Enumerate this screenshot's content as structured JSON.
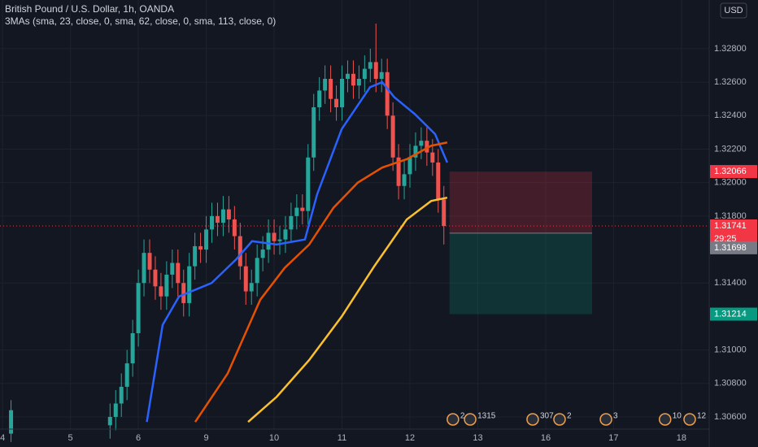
{
  "chart_data": {
    "type": "candlestick",
    "title": "British Pound / U.S. Dollar, 1h, OANDA",
    "indicator": "3MAs (sma, 23, close, 0, sma, 62, close, 0, sma, 113, close, 0)",
    "currency": "USD",
    "up_color": "#26a69a",
    "down_color": "#ef5350",
    "candles": {
      "x": [
        3,
        38,
        40,
        42,
        44,
        46,
        48,
        50,
        52,
        54,
        56,
        58,
        60,
        62,
        64,
        66,
        68,
        70,
        72,
        74,
        76,
        78,
        80,
        82,
        84,
        86,
        88,
        90,
        92,
        94,
        96,
        98,
        100,
        102,
        104,
        106,
        108,
        110,
        112,
        114,
        116,
        118,
        120,
        122,
        124,
        126,
        128,
        130,
        132,
        134,
        136,
        138,
        140,
        142,
        144,
        146,
        148,
        150,
        152,
        154,
        156
      ],
      "open": [
        1.305,
        1.3055,
        1.306,
        1.3068,
        1.3078,
        1.3092,
        1.311,
        1.314,
        1.3158,
        1.3148,
        1.3138,
        1.3132,
        1.3145,
        1.3152,
        1.314,
        1.3128,
        1.315,
        1.3162,
        1.316,
        1.3172,
        1.318,
        1.3176,
        1.3184,
        1.3178,
        1.3168,
        1.315,
        1.3135,
        1.314,
        1.3155,
        1.316,
        1.317,
        1.3165,
        1.3166,
        1.3172,
        1.318,
        1.3185,
        1.3183,
        1.3215,
        1.3245,
        1.3255,
        1.3262,
        1.325,
        1.3245,
        1.3262,
        1.3265,
        1.3258,
        1.3262,
        1.3268,
        1.3272,
        1.3262,
        1.3266,
        1.324,
        1.3215,
        1.3198,
        1.3205,
        1.3215,
        1.3222,
        1.3225,
        1.3218,
        1.3212,
        1.319
      ],
      "high": [
        1.307,
        1.3068,
        1.3076,
        1.3086,
        1.31,
        1.3118,
        1.3148,
        1.3166,
        1.3166,
        1.3156,
        1.3146,
        1.3153,
        1.316,
        1.316,
        1.3148,
        1.3158,
        1.317,
        1.317,
        1.318,
        1.3188,
        1.3188,
        1.3192,
        1.3192,
        1.3186,
        1.3176,
        1.3158,
        1.3148,
        1.3163,
        1.3168,
        1.3178,
        1.3178,
        1.3174,
        1.318,
        1.3188,
        1.3193,
        1.3193,
        1.3223,
        1.3253,
        1.3263,
        1.327,
        1.327,
        1.3258,
        1.327,
        1.3273,
        1.3273,
        1.327,
        1.3276,
        1.328,
        1.3295,
        1.3274,
        1.3274,
        1.3248,
        1.3223,
        1.3213,
        1.3223,
        1.323,
        1.3233,
        1.3233,
        1.3226,
        1.322,
        1.3198
      ],
      "low": [
        1.3045,
        1.3047,
        1.3052,
        1.306,
        1.307,
        1.3084,
        1.3102,
        1.3132,
        1.314,
        1.313,
        1.3124,
        1.3124,
        1.3137,
        1.3132,
        1.312,
        1.312,
        1.3142,
        1.3152,
        1.3152,
        1.3164,
        1.3168,
        1.3168,
        1.317,
        1.316,
        1.3142,
        1.3127,
        1.3127,
        1.3132,
        1.3147,
        1.3152,
        1.3157,
        1.3157,
        1.3158,
        1.3164,
        1.3172,
        1.3175,
        1.3175,
        1.3207,
        1.3237,
        1.3247,
        1.3242,
        1.3237,
        1.3237,
        1.3254,
        1.325,
        1.325,
        1.3254,
        1.326,
        1.3254,
        1.3254,
        1.3232,
        1.3207,
        1.319,
        1.319,
        1.3197,
        1.3207,
        1.3214,
        1.321,
        1.3204,
        1.3182,
        1.3163
      ],
      "close": [
        1.3064,
        1.306,
        1.3068,
        1.3078,
        1.3092,
        1.311,
        1.314,
        1.3158,
        1.3148,
        1.3138,
        1.3132,
        1.3145,
        1.3152,
        1.314,
        1.3128,
        1.315,
        1.3162,
        1.316,
        1.3172,
        1.318,
        1.3176,
        1.3184,
        1.3178,
        1.3168,
        1.315,
        1.3135,
        1.314,
        1.3155,
        1.316,
        1.317,
        1.3165,
        1.3166,
        1.3172,
        1.318,
        1.3185,
        1.3183,
        1.3215,
        1.3245,
        1.3255,
        1.3262,
        1.325,
        1.3245,
        1.3262,
        1.3265,
        1.3258,
        1.3262,
        1.3268,
        1.3272,
        1.3262,
        1.3266,
        1.324,
        1.3215,
        1.3198,
        1.3205,
        1.3215,
        1.3222,
        1.3225,
        1.3218,
        1.3212,
        1.319,
        1.31741
      ]
    },
    "series": [
      {
        "color": "#2962ff",
        "x": [
          51,
          56.6,
          62.4,
          73.9,
          82.5,
          88.2,
          96.9,
          106.9,
          111.2,
          119.9,
          129.9,
          134.2,
          138.5,
          145.7,
          152.9,
          157.2
        ],
        "values": [
          1.3057,
          1.3115,
          1.3132,
          1.314,
          1.3154,
          1.3165,
          1.3163,
          1.3166,
          1.3193,
          1.3232,
          1.3257,
          1.326,
          1.3251,
          1.3241,
          1.3229,
          1.3212
        ]
      },
      {
        "color": "#e65100",
        "x": [
          68.1,
          79.6,
          91.1,
          99.7,
          108.4,
          117,
          125.6,
          134.2,
          142.9,
          151.5,
          157.2
        ],
        "values": [
          1.3057,
          1.3086,
          1.313,
          1.3149,
          1.3163,
          1.3185,
          1.32,
          1.3209,
          1.3214,
          1.3222,
          1.3224
        ]
      },
      {
        "color": "#fbc02d",
        "x": [
          86.8,
          96.9,
          108.4,
          119.9,
          131.4,
          142.9,
          151.5,
          157.2
        ],
        "values": [
          1.3057,
          1.3072,
          1.3094,
          1.312,
          1.315,
          1.3178,
          1.3189,
          1.3191
        ]
      }
    ],
    "current_price": 1.31741,
    "countdown": "29:25",
    "position": {
      "stop": 1.32066,
      "entry": 1.31698,
      "target": 1.31214,
      "x_start": 158,
      "x_end": 208.4
    },
    "events": [
      {
        "x": 159.2,
        "label": "2"
      },
      {
        "x": 165.3,
        "label": "1315"
      },
      {
        "x": 187.4,
        "label": "307"
      },
      {
        "x": 196.9,
        "label": "2"
      },
      {
        "x": 213.3,
        "label": "3"
      },
      {
        "x": 234.2,
        "label": "10"
      },
      {
        "x": 242.9,
        "label": "12"
      }
    ],
    "xlim": [
      -0.9,
      249.8
    ],
    "xticks": [
      {
        "value": 0,
        "label": "4"
      },
      {
        "value": 24,
        "label": "5"
      },
      {
        "value": 48,
        "label": "6"
      },
      {
        "value": 72,
        "label": "9"
      },
      {
        "value": 96,
        "label": "10"
      },
      {
        "value": 120,
        "label": "11"
      },
      {
        "value": 144,
        "label": "12"
      },
      {
        "value": 168,
        "label": "13"
      },
      {
        "value": 192,
        "label": "16"
      },
      {
        "value": 216,
        "label": "17"
      },
      {
        "value": 240,
        "label": "18"
      }
    ],
    "ylim": [
      1.30527,
      1.33091
    ],
    "yticks": [
      {
        "value": 1.328,
        "label": "1.32800"
      },
      {
        "value": 1.326,
        "label": "1.32600"
      },
      {
        "value": 1.324,
        "label": "1.32400"
      },
      {
        "value": 1.322,
        "label": "1.32200"
      },
      {
        "value": 1.32,
        "label": "1.32000"
      },
      {
        "value": 1.318,
        "label": "1.31800"
      },
      {
        "value": 1.314,
        "label": "1.31400"
      },
      {
        "value": 1.31,
        "label": "1.31000"
      },
      {
        "value": 1.308,
        "label": "1.30800"
      },
      {
        "value": 1.306,
        "label": "1.30600"
      }
    ],
    "grid": true
  }
}
